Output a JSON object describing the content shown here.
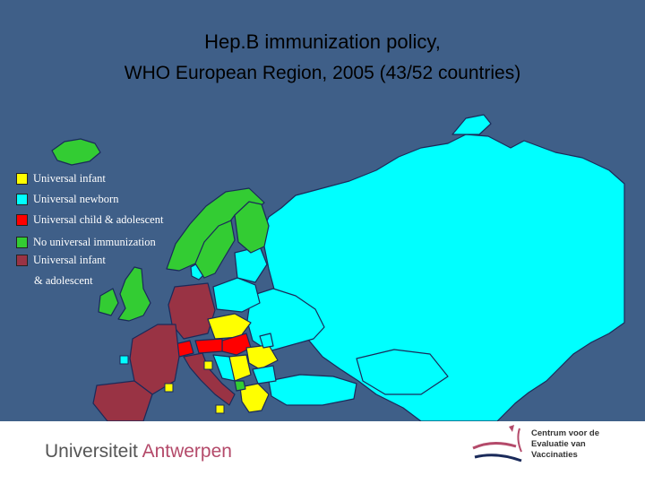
{
  "title": {
    "line1": "Hep.B immunization policy,",
    "line2": "WHO European Region, 2005 (43/52 countries)"
  },
  "legend": {
    "items": [
      {
        "key": "universal_infant",
        "label": "Universal infant",
        "color": "#ffff00"
      },
      {
        "key": "universal_newborn",
        "label": "Universal newborn",
        "color": "#00ffff"
      },
      {
        "key": "universal_child_adolescent",
        "label": "Universal child & adolescent",
        "color": "#ff0000"
      },
      {
        "key": "no_universal",
        "label": "No universal immunization",
        "color": "#33cc33"
      },
      {
        "key": "universal_infant_adolescent",
        "label": "Universal infant",
        "color": "#993344"
      }
    ],
    "extra_line": "& adolescent"
  },
  "colors": {
    "background": "#3f5f88",
    "border": "#1a2a5a"
  },
  "footer": {
    "university_part1": "Universiteit",
    "university_part2": "Antwerpen",
    "logo_lines": [
      "Centrum voor de",
      "Evaluatie van",
      "Vaccinaties"
    ]
  }
}
